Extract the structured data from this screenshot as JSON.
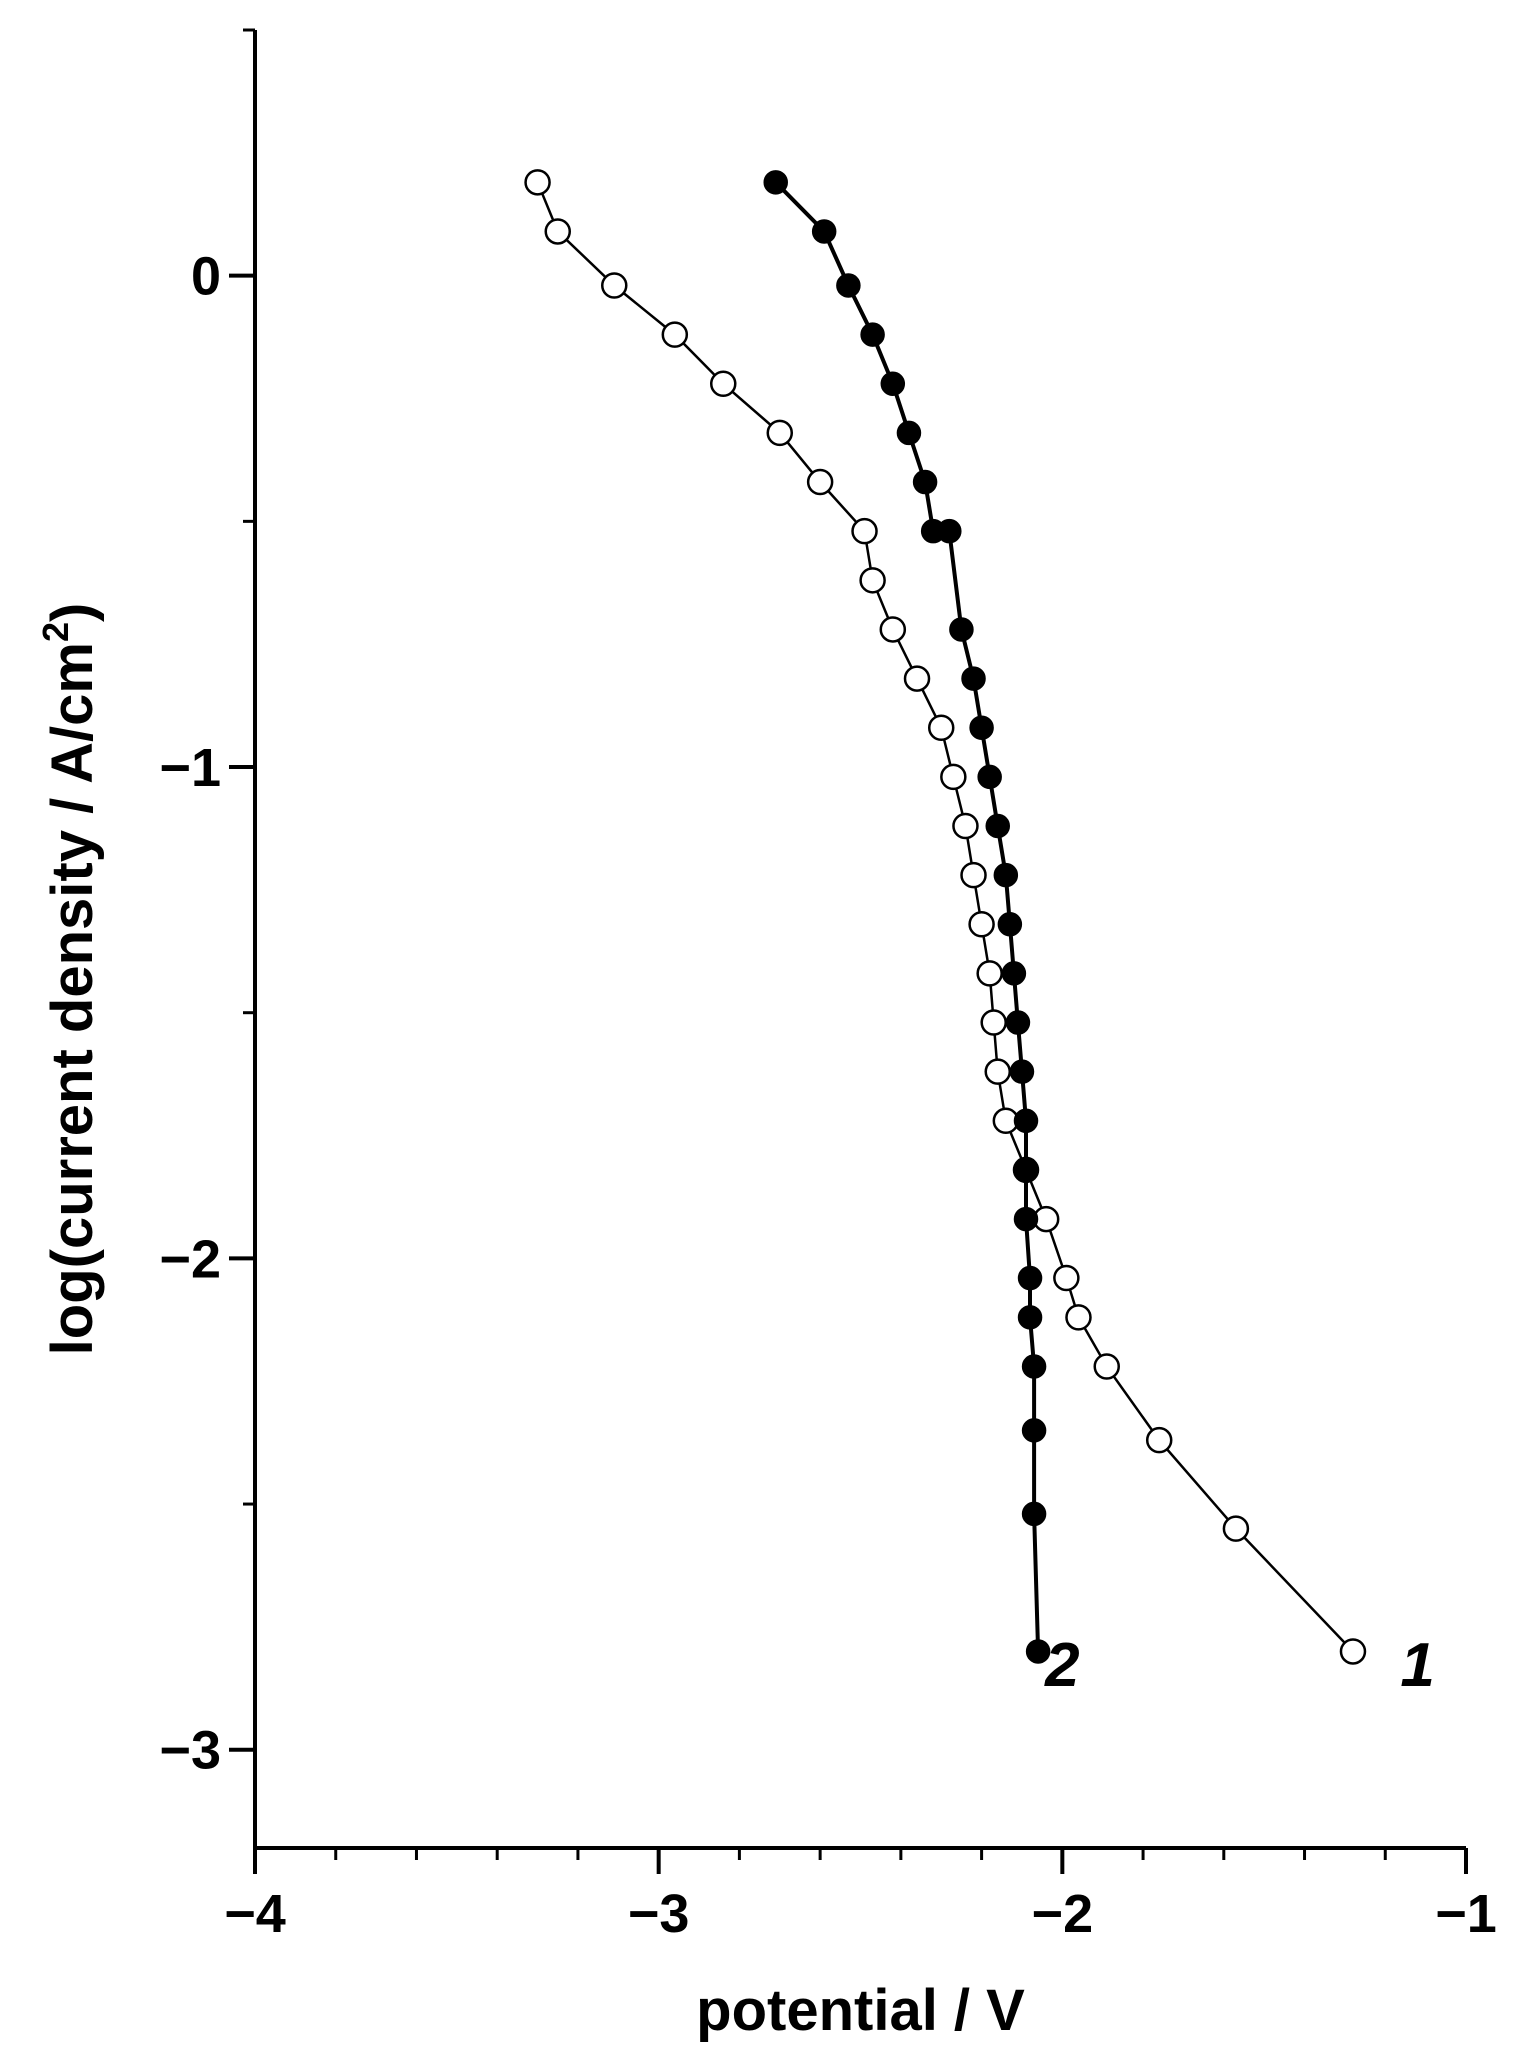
{
  "chart_data": {
    "type": "scatter",
    "title": "",
    "xlabel": "potential / V",
    "ylabel_main": "log(current density / A/cm",
    "ylabel_sup": "2",
    "ylabel_close": ")",
    "xlim": [
      -4,
      -1
    ],
    "ylim": [
      -3.2,
      0.5
    ],
    "x_ticks": [
      {
        "value": -4,
        "label": "−4"
      },
      {
        "value": -3,
        "label": "−3"
      },
      {
        "value": -2,
        "label": "−2"
      },
      {
        "value": -1,
        "label": "−1"
      }
    ],
    "y_ticks": [
      {
        "value": 0,
        "label": "0"
      },
      {
        "value": -1,
        "label": "−1"
      },
      {
        "value": -2,
        "label": "−2"
      },
      {
        "value": -3,
        "label": "−3"
      }
    ],
    "x_minor_step": 0.2,
    "y_minor_step": 0.5,
    "grid": false,
    "series": [
      {
        "name": "1",
        "marker": "open-circle",
        "label_at": [
          -1.12,
          -2.87
        ],
        "points": [
          [
            -3.3,
            0.19
          ],
          [
            -3.25,
            0.09
          ],
          [
            -3.11,
            -0.02
          ],
          [
            -2.96,
            -0.12
          ],
          [
            -2.84,
            -0.22
          ],
          [
            -2.7,
            -0.32
          ],
          [
            -2.6,
            -0.42
          ],
          [
            -2.49,
            -0.52
          ],
          [
            -2.47,
            -0.62
          ],
          [
            -2.42,
            -0.72
          ],
          [
            -2.36,
            -0.82
          ],
          [
            -2.3,
            -0.92
          ],
          [
            -2.27,
            -1.02
          ],
          [
            -2.24,
            -1.12
          ],
          [
            -2.22,
            -1.22
          ],
          [
            -2.2,
            -1.32
          ],
          [
            -2.18,
            -1.42
          ],
          [
            -2.17,
            -1.52
          ],
          [
            -2.16,
            -1.62
          ],
          [
            -2.14,
            -1.72
          ],
          [
            -2.09,
            -1.82
          ],
          [
            -2.04,
            -1.92
          ],
          [
            -1.99,
            -2.04
          ],
          [
            -1.96,
            -2.12
          ],
          [
            -1.89,
            -2.22
          ],
          [
            -1.76,
            -2.37
          ],
          [
            -1.57,
            -2.55
          ],
          [
            -1.28,
            -2.8
          ]
        ]
      },
      {
        "name": "2",
        "marker": "filled-circle",
        "label_at": [
          -2.0,
          -2.87
        ],
        "points": [
          [
            -2.71,
            0.19
          ],
          [
            -2.59,
            0.09
          ],
          [
            -2.53,
            -0.02
          ],
          [
            -2.47,
            -0.12
          ],
          [
            -2.42,
            -0.22
          ],
          [
            -2.38,
            -0.32
          ],
          [
            -2.34,
            -0.42
          ],
          [
            -2.32,
            -0.52
          ],
          [
            -2.28,
            -0.52
          ],
          [
            -2.25,
            -0.72
          ],
          [
            -2.22,
            -0.82
          ],
          [
            -2.2,
            -0.92
          ],
          [
            -2.18,
            -1.02
          ],
          [
            -2.16,
            -1.12
          ],
          [
            -2.14,
            -1.22
          ],
          [
            -2.13,
            -1.32
          ],
          [
            -2.12,
            -1.42
          ],
          [
            -2.11,
            -1.52
          ],
          [
            -2.1,
            -1.62
          ],
          [
            -2.09,
            -1.72
          ],
          [
            -2.09,
            -1.82
          ],
          [
            -2.09,
            -1.92
          ],
          [
            -2.08,
            -2.04
          ],
          [
            -2.08,
            -2.12
          ],
          [
            -2.07,
            -2.22
          ],
          [
            -2.07,
            -2.35
          ],
          [
            -2.07,
            -2.52
          ],
          [
            -2.06,
            -2.8
          ]
        ]
      }
    ]
  }
}
